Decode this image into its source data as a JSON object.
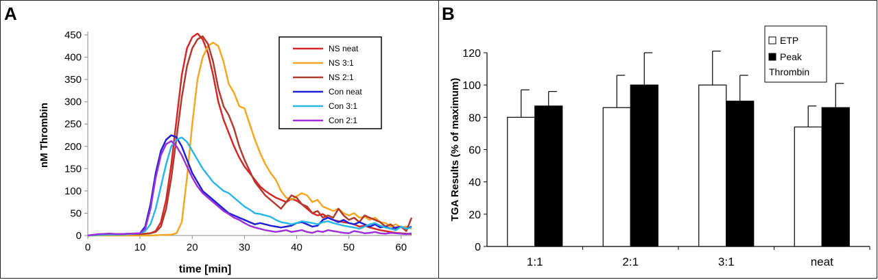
{
  "panels": {
    "a_label": "A",
    "b_label": "B"
  },
  "chart_data": [
    {
      "type": "line",
      "xlabel": "time [min]",
      "ylabel": "nM Thrombin",
      "xlim": [
        0,
        62
      ],
      "ylim": [
        0,
        450
      ],
      "xticks": [
        0,
        10,
        20,
        30,
        40,
        50,
        60
      ],
      "yticks": [
        0,
        50,
        100,
        150,
        200,
        250,
        300,
        350,
        400,
        450
      ],
      "grid": false,
      "legend_position": "top-right",
      "series": [
        {
          "name": "NS neat",
          "color": "#d62728",
          "x": [
            0,
            2,
            4,
            6,
            8,
            10,
            12,
            13,
            14,
            15,
            16,
            17,
            18,
            19,
            20,
            21,
            22,
            23,
            24,
            25,
            26,
            27,
            28,
            29,
            30,
            31,
            32,
            33,
            34,
            35,
            36,
            37,
            38,
            39,
            40,
            41,
            42,
            43,
            44,
            45,
            46,
            47,
            48,
            49,
            50,
            51,
            52,
            53,
            54,
            55,
            56,
            57,
            58,
            59,
            60,
            61,
            62
          ],
          "y": [
            0,
            2,
            2,
            3,
            3,
            3,
            5,
            10,
            30,
            80,
            160,
            260,
            360,
            420,
            445,
            453,
            440,
            410,
            360,
            300,
            260,
            230,
            200,
            175,
            155,
            140,
            125,
            110,
            100,
            92,
            85,
            80,
            75,
            82,
            78,
            70,
            60,
            50,
            45,
            48,
            40,
            35,
            32,
            30,
            28,
            25,
            20,
            22,
            18,
            15,
            12,
            10,
            8,
            6,
            5,
            4,
            3
          ]
        },
        {
          "name": "NS 3:1",
          "color": "#f5a623",
          "x": [
            0,
            2,
            4,
            6,
            8,
            10,
            12,
            14,
            16,
            17,
            18,
            19,
            20,
            21,
            22,
            23,
            24,
            25,
            26,
            27,
            28,
            29,
            30,
            31,
            32,
            33,
            34,
            35,
            36,
            37,
            38,
            39,
            40,
            41,
            42,
            43,
            44,
            45,
            46,
            47,
            48,
            49,
            50,
            51,
            52,
            53,
            54,
            55,
            56,
            57,
            58,
            59,
            60,
            61,
            62
          ],
          "y": [
            0,
            0,
            0,
            0,
            0,
            0,
            0,
            1,
            2,
            5,
            30,
            130,
            250,
            350,
            400,
            425,
            433,
            425,
            390,
            340,
            320,
            290,
            285,
            250,
            215,
            185,
            160,
            140,
            125,
            100,
            85,
            80,
            88,
            95,
            90,
            75,
            80,
            65,
            60,
            55,
            60,
            50,
            45,
            50,
            40,
            42,
            35,
            40,
            30,
            28,
            20,
            25,
            18,
            20,
            15
          ]
        },
        {
          "name": "NS 2:1",
          "color": "#b03a2e",
          "x": [
            0,
            2,
            4,
            6,
            8,
            10,
            12,
            13,
            14,
            15,
            16,
            17,
            18,
            19,
            20,
            21,
            22,
            23,
            24,
            25,
            26,
            27,
            28,
            29,
            30,
            31,
            32,
            33,
            34,
            35,
            36,
            37,
            38,
            39,
            40,
            41,
            42,
            43,
            44,
            45,
            46,
            47,
            48,
            49,
            50,
            51,
            52,
            53,
            54,
            55,
            56,
            57,
            58,
            59,
            60,
            61,
            62
          ],
          "y": [
            0,
            2,
            3,
            2,
            3,
            3,
            5,
            8,
            20,
            60,
            130,
            220,
            310,
            380,
            420,
            440,
            447,
            430,
            390,
            330,
            290,
            270,
            240,
            200,
            170,
            145,
            120,
            105,
            90,
            80,
            70,
            60,
            75,
            90,
            85,
            70,
            65,
            50,
            55,
            40,
            45,
            40,
            60,
            45,
            35,
            40,
            30,
            45,
            40,
            35,
            30,
            20,
            25,
            15,
            20,
            10,
            40
          ]
        },
        {
          "name": "Con neat",
          "color": "#1f1fd6",
          "x": [
            0,
            2,
            4,
            6,
            8,
            10,
            11,
            12,
            13,
            14,
            15,
            16,
            17,
            18,
            19,
            20,
            21,
            22,
            23,
            24,
            25,
            26,
            27,
            28,
            29,
            30,
            31,
            32,
            33,
            34,
            35,
            36,
            37,
            38,
            39,
            40,
            41,
            42,
            43,
            44,
            45,
            46,
            47,
            48,
            49,
            50,
            51,
            52,
            53,
            54,
            55,
            56,
            57,
            58,
            59,
            60,
            61,
            62
          ],
          "y": [
            0,
            2,
            4,
            3,
            4,
            5,
            20,
            70,
            140,
            190,
            215,
            225,
            220,
            200,
            170,
            140,
            120,
            100,
            90,
            80,
            70,
            60,
            50,
            45,
            40,
            35,
            30,
            25,
            28,
            25,
            22,
            20,
            18,
            20,
            22,
            28,
            30,
            25,
            20,
            22,
            35,
            40,
            35,
            30,
            35,
            28,
            25,
            30,
            25,
            20,
            25,
            18,
            20,
            15,
            18,
            20,
            15,
            20
          ]
        },
        {
          "name": "Con 3:1",
          "color": "#29b6e6",
          "x": [
            0,
            2,
            4,
            6,
            8,
            10,
            11,
            12,
            13,
            14,
            15,
            16,
            17,
            18,
            19,
            20,
            21,
            22,
            23,
            24,
            25,
            26,
            27,
            28,
            29,
            30,
            31,
            32,
            33,
            34,
            35,
            36,
            37,
            38,
            39,
            40,
            41,
            42,
            43,
            44,
            45,
            46,
            47,
            48,
            49,
            50,
            51,
            52,
            53,
            54,
            55,
            56,
            57,
            58,
            59,
            60,
            61,
            62
          ],
          "y": [
            0,
            1,
            2,
            2,
            3,
            5,
            10,
            25,
            60,
            110,
            160,
            200,
            215,
            220,
            210,
            190,
            170,
            150,
            135,
            120,
            110,
            100,
            95,
            85,
            75,
            65,
            58,
            50,
            48,
            45,
            42,
            35,
            30,
            28,
            25,
            28,
            32,
            30,
            28,
            25,
            30,
            32,
            28,
            25,
            22,
            20,
            18,
            15,
            20,
            25,
            28,
            22,
            18,
            15,
            12,
            20,
            15,
            18
          ]
        },
        {
          "name": "Con 2:1",
          "color": "#9b30d9",
          "x": [
            0,
            2,
            4,
            6,
            8,
            10,
            11,
            12,
            13,
            14,
            15,
            16,
            17,
            18,
            19,
            20,
            21,
            22,
            23,
            24,
            25,
            26,
            27,
            28,
            29,
            30,
            31,
            32,
            33,
            34,
            35,
            36,
            37,
            38,
            39,
            40,
            41,
            42,
            43,
            44,
            45,
            46,
            47,
            48,
            49,
            50,
            51,
            52,
            53,
            54,
            55,
            56,
            57,
            58,
            59,
            60,
            61,
            62
          ],
          "y": [
            0,
            3,
            4,
            3,
            4,
            5,
            15,
            60,
            130,
            180,
            205,
            212,
            200,
            180,
            155,
            130,
            110,
            95,
            85,
            75,
            65,
            55,
            48,
            40,
            35,
            28,
            22,
            18,
            15,
            12,
            10,
            8,
            10,
            12,
            8,
            10,
            12,
            8,
            6,
            10,
            8,
            12,
            10,
            8,
            6,
            5,
            10,
            8,
            5,
            6,
            8,
            5,
            4,
            6,
            5,
            4,
            3,
            5
          ]
        }
      ]
    },
    {
      "type": "bar",
      "ylabel": "TGA Results (% of maximum)",
      "xlabel": "",
      "categories": [
        "1:1",
        "2:1",
        "3:1",
        "neat"
      ],
      "ylim": [
        0,
        120
      ],
      "yticks": [
        0,
        20,
        40,
        60,
        80,
        100,
        120
      ],
      "grid": false,
      "legend_position": "top-right",
      "legend_labels": {
        "etp": "ETP",
        "peak_line1": "Peak",
        "peak_line2": "Thrombin"
      },
      "series": [
        {
          "name": "ETP",
          "color": "#ffffff",
          "values": [
            80,
            86,
            100,
            74
          ],
          "error": [
            17,
            20,
            21,
            13
          ]
        },
        {
          "name": "Peak Thrombin",
          "color": "#000000",
          "values": [
            87,
            100,
            90,
            86
          ],
          "error": [
            9,
            20,
            16,
            15
          ]
        }
      ]
    }
  ]
}
